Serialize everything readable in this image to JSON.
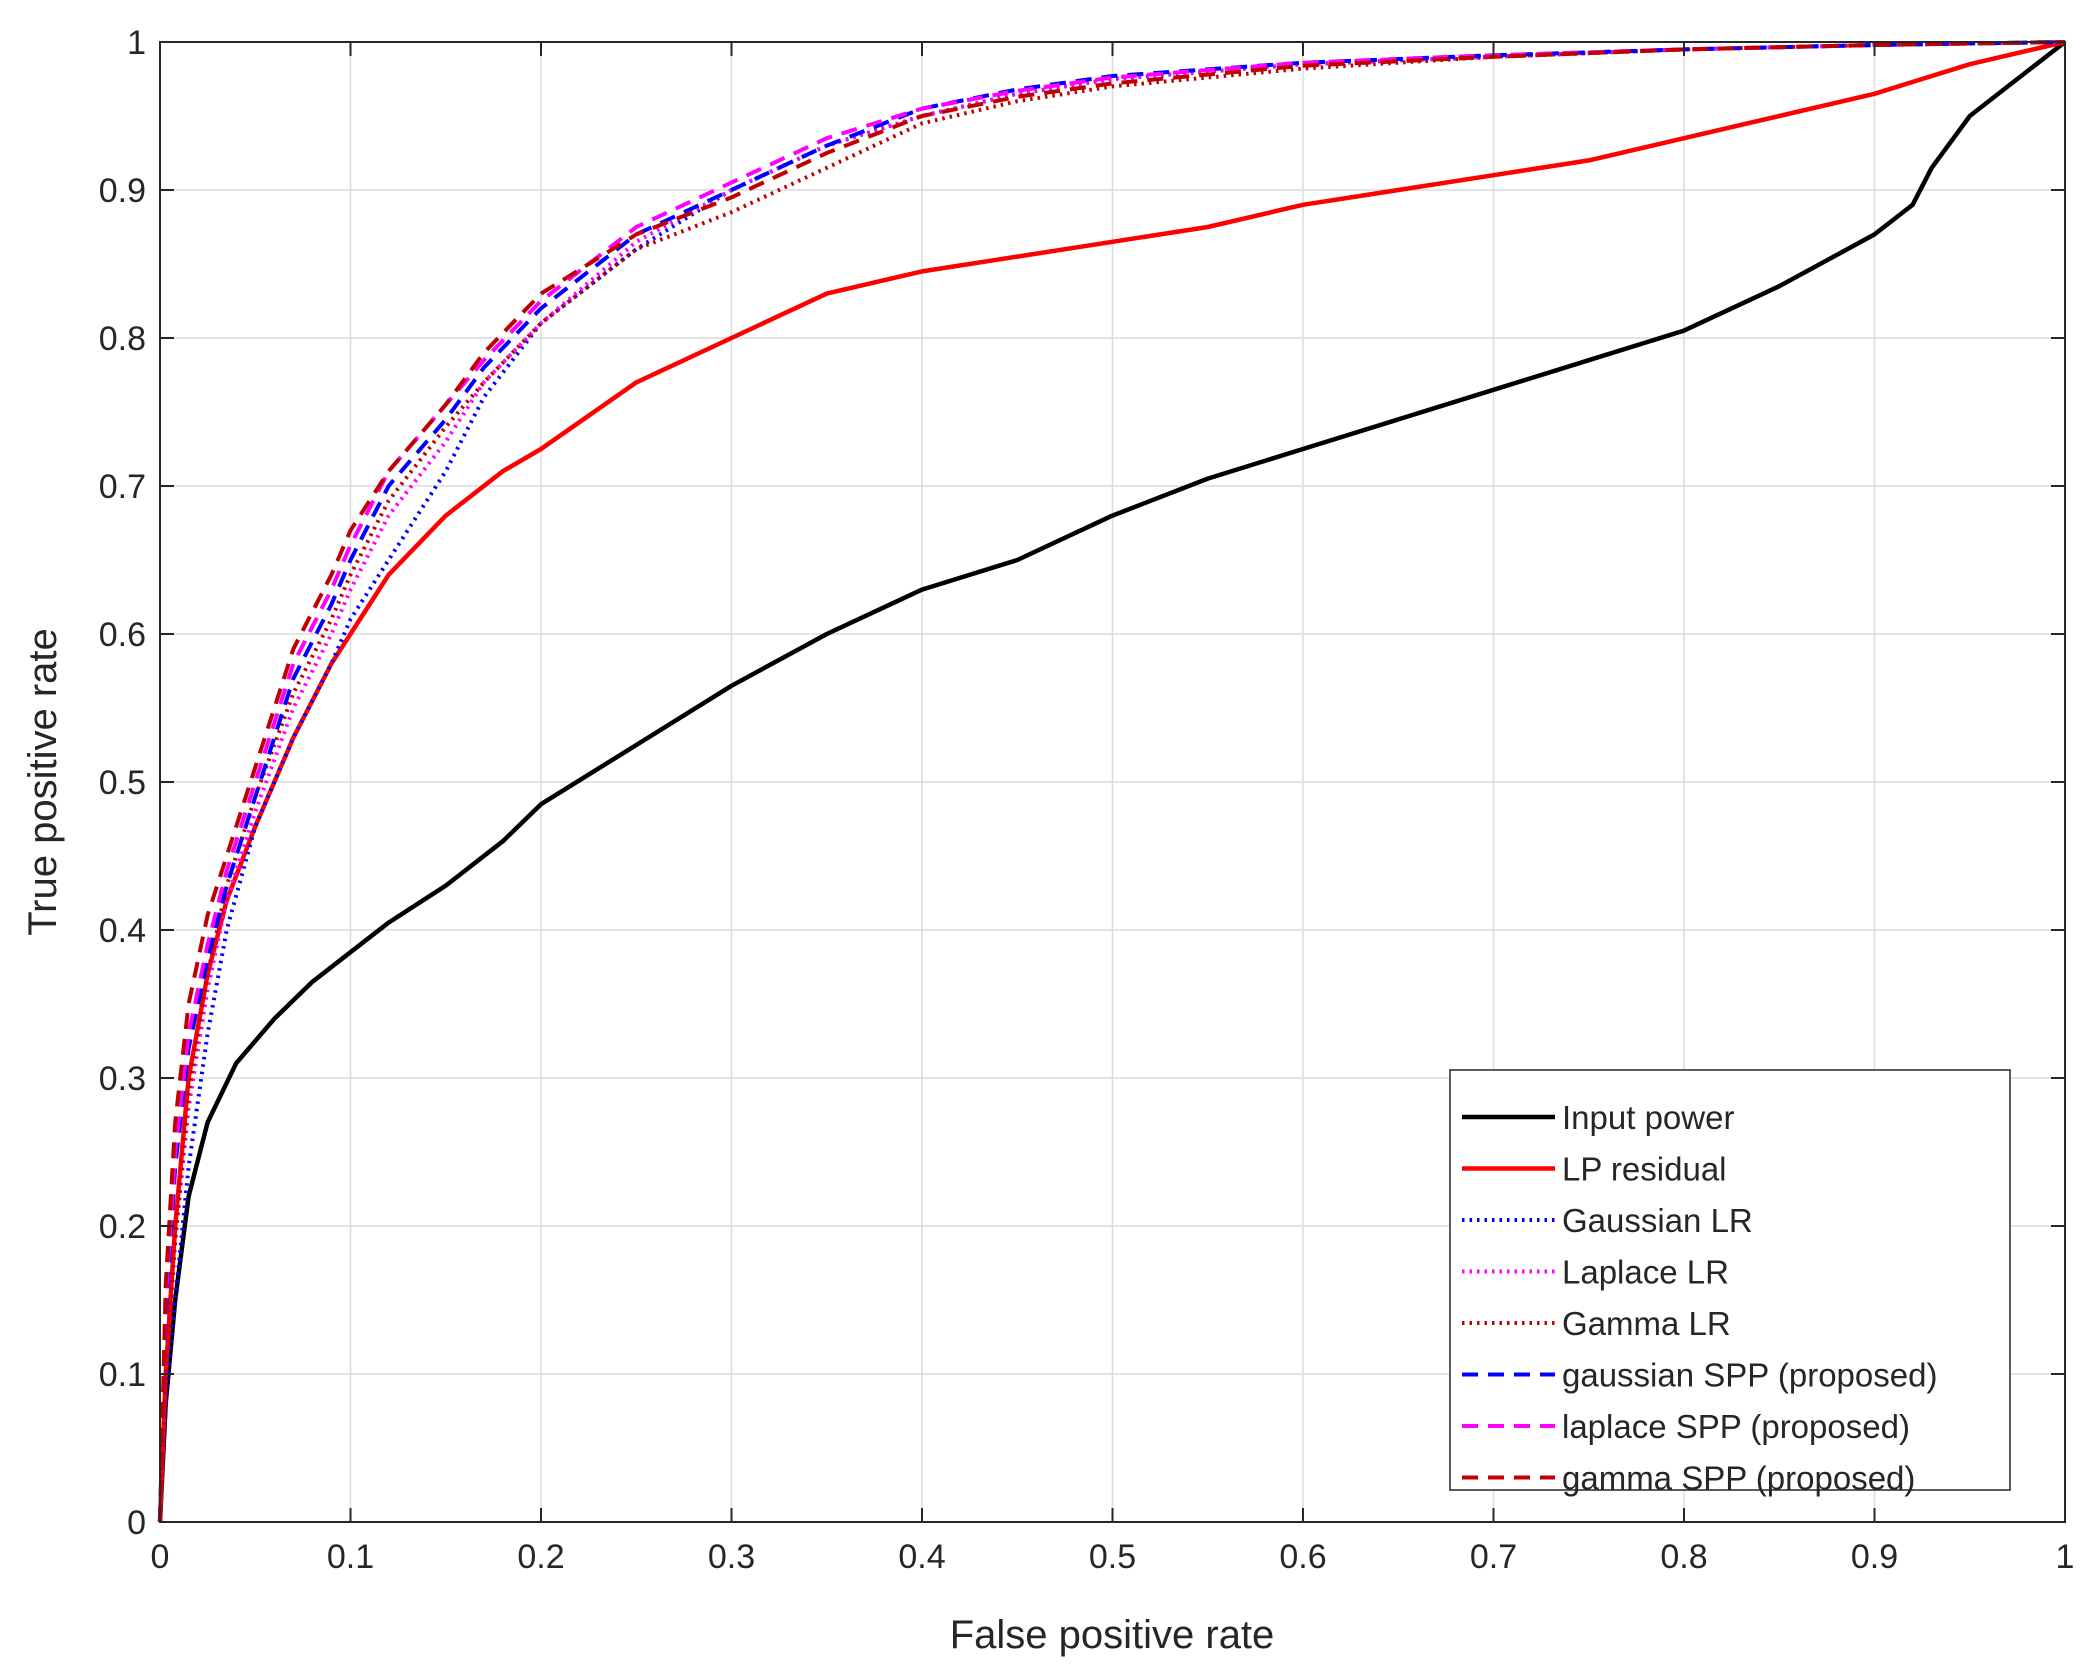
{
  "chart_data": {
    "type": "line",
    "title": "",
    "xlabel": "False positive rate",
    "ylabel": "True positive rate",
    "xlim": [
      0,
      1
    ],
    "ylim": [
      0,
      1
    ],
    "xticks": [
      0,
      0.1,
      0.2,
      0.3,
      0.4,
      0.5,
      0.6,
      0.7,
      0.8,
      0.9,
      1
    ],
    "xtick_labels": [
      "0",
      "0.1",
      "0.2",
      "0.3",
      "0.4",
      "0.5",
      "0.6",
      "0.7",
      "0.8",
      "0.9",
      "1"
    ],
    "yticks": [
      0,
      0.1,
      0.2,
      0.3,
      0.4,
      0.5,
      0.6,
      0.7,
      0.8,
      0.9,
      1
    ],
    "ytick_labels": [
      "0",
      "0.1",
      "0.2",
      "0.3",
      "0.4",
      "0.5",
      "0.6",
      "0.7",
      "0.8",
      "0.9",
      "1"
    ],
    "grid": true,
    "legend_position": "bottom-right",
    "series": [
      {
        "name": "Input power",
        "color": "#000000",
        "style": "solid",
        "x": [
          0,
          0.003,
          0.008,
          0.015,
          0.025,
          0.04,
          0.06,
          0.08,
          0.1,
          0.12,
          0.15,
          0.18,
          0.2,
          0.25,
          0.3,
          0.35,
          0.4,
          0.45,
          0.5,
          0.55,
          0.6,
          0.65,
          0.7,
          0.75,
          0.8,
          0.85,
          0.9,
          0.92,
          0.93,
          0.95,
          0.97,
          1
        ],
        "y": [
          0,
          0.08,
          0.15,
          0.22,
          0.27,
          0.31,
          0.34,
          0.365,
          0.385,
          0.405,
          0.43,
          0.46,
          0.485,
          0.525,
          0.565,
          0.6,
          0.63,
          0.65,
          0.68,
          0.705,
          0.725,
          0.745,
          0.765,
          0.785,
          0.805,
          0.835,
          0.87,
          0.89,
          0.915,
          0.95,
          0.97,
          1
        ]
      },
      {
        "name": "LP residual",
        "color": "#ff0000",
        "style": "solid",
        "x": [
          0,
          0.003,
          0.008,
          0.015,
          0.025,
          0.035,
          0.05,
          0.07,
          0.09,
          0.1,
          0.12,
          0.15,
          0.18,
          0.2,
          0.25,
          0.3,
          0.35,
          0.4,
          0.45,
          0.5,
          0.55,
          0.6,
          0.65,
          0.7,
          0.75,
          0.8,
          0.85,
          0.9,
          0.95,
          1
        ],
        "y": [
          0,
          0.1,
          0.2,
          0.3,
          0.37,
          0.42,
          0.47,
          0.53,
          0.58,
          0.6,
          0.64,
          0.68,
          0.71,
          0.725,
          0.77,
          0.8,
          0.83,
          0.845,
          0.855,
          0.865,
          0.875,
          0.89,
          0.9,
          0.91,
          0.92,
          0.935,
          0.95,
          0.965,
          0.985,
          1
        ]
      },
      {
        "name": "Gaussian LR",
        "color": "#0000ff",
        "style": "dotted",
        "x": [
          0,
          0.003,
          0.008,
          0.015,
          0.025,
          0.035,
          0.05,
          0.07,
          0.09,
          0.1,
          0.12,
          0.15,
          0.17,
          0.2,
          0.25,
          0.3,
          0.35,
          0.4,
          0.45,
          0.5,
          0.6,
          0.7,
          0.8,
          0.9,
          1
        ],
        "y": [
          0,
          0.08,
          0.15,
          0.24,
          0.33,
          0.4,
          0.47,
          0.53,
          0.58,
          0.61,
          0.65,
          0.71,
          0.76,
          0.81,
          0.86,
          0.9,
          0.93,
          0.95,
          0.965,
          0.975,
          0.985,
          0.99,
          0.995,
          0.998,
          1
        ]
      },
      {
        "name": "Laplace LR",
        "color": "#ff00ff",
        "style": "dotted",
        "x": [
          0,
          0.003,
          0.008,
          0.015,
          0.025,
          0.035,
          0.05,
          0.07,
          0.09,
          0.1,
          0.12,
          0.15,
          0.17,
          0.2,
          0.25,
          0.3,
          0.35,
          0.4,
          0.45,
          0.5,
          0.6,
          0.7,
          0.8,
          0.9,
          1
        ],
        "y": [
          0,
          0.1,
          0.19,
          0.28,
          0.36,
          0.42,
          0.48,
          0.55,
          0.6,
          0.63,
          0.68,
          0.73,
          0.77,
          0.81,
          0.865,
          0.9,
          0.93,
          0.95,
          0.965,
          0.975,
          0.985,
          0.99,
          0.995,
          0.998,
          1
        ]
      },
      {
        "name": "Gamma LR",
        "color": "#c00000",
        "style": "dotted",
        "x": [
          0,
          0.003,
          0.008,
          0.015,
          0.025,
          0.035,
          0.05,
          0.07,
          0.09,
          0.1,
          0.12,
          0.15,
          0.17,
          0.2,
          0.25,
          0.3,
          0.35,
          0.4,
          0.45,
          0.5,
          0.6,
          0.7,
          0.8,
          0.9,
          1
        ],
        "y": [
          0,
          0.1,
          0.19,
          0.29,
          0.37,
          0.43,
          0.49,
          0.56,
          0.61,
          0.64,
          0.69,
          0.74,
          0.77,
          0.81,
          0.86,
          0.885,
          0.915,
          0.945,
          0.96,
          0.97,
          0.982,
          0.99,
          0.995,
          0.998,
          1
        ]
      },
      {
        "name": "gaussian SPP (proposed)",
        "color": "#0000ff",
        "style": "dashed",
        "x": [
          0,
          0.003,
          0.008,
          0.015,
          0.025,
          0.035,
          0.05,
          0.07,
          0.09,
          0.1,
          0.12,
          0.15,
          0.17,
          0.2,
          0.25,
          0.3,
          0.35,
          0.4,
          0.45,
          0.5,
          0.6,
          0.7,
          0.8,
          0.9,
          1
        ],
        "y": [
          0,
          0.14,
          0.24,
          0.32,
          0.38,
          0.43,
          0.49,
          0.57,
          0.62,
          0.65,
          0.7,
          0.745,
          0.78,
          0.82,
          0.87,
          0.9,
          0.93,
          0.955,
          0.968,
          0.977,
          0.986,
          0.991,
          0.995,
          0.998,
          1
        ]
      },
      {
        "name": "laplace SPP (proposed)",
        "color": "#ff00ff",
        "style": "dashed",
        "x": [
          0,
          0.003,
          0.008,
          0.015,
          0.025,
          0.035,
          0.05,
          0.07,
          0.09,
          0.1,
          0.12,
          0.15,
          0.17,
          0.2,
          0.25,
          0.3,
          0.35,
          0.4,
          0.45,
          0.5,
          0.6,
          0.7,
          0.8,
          0.9,
          1
        ],
        "y": [
          0,
          0.15,
          0.25,
          0.33,
          0.39,
          0.44,
          0.5,
          0.58,
          0.63,
          0.66,
          0.71,
          0.755,
          0.785,
          0.825,
          0.875,
          0.905,
          0.935,
          0.955,
          0.967,
          0.976,
          0.986,
          0.991,
          0.995,
          0.998,
          1
        ]
      },
      {
        "name": "gamma SPP (proposed)",
        "color": "#c00000",
        "style": "dashed",
        "x": [
          0,
          0.003,
          0.008,
          0.015,
          0.025,
          0.035,
          0.05,
          0.07,
          0.09,
          0.1,
          0.12,
          0.15,
          0.17,
          0.2,
          0.25,
          0.3,
          0.35,
          0.4,
          0.45,
          0.5,
          0.6,
          0.7,
          0.8,
          0.9,
          1
        ],
        "y": [
          0,
          0.16,
          0.27,
          0.35,
          0.41,
          0.45,
          0.51,
          0.59,
          0.64,
          0.67,
          0.71,
          0.755,
          0.79,
          0.83,
          0.87,
          0.895,
          0.925,
          0.95,
          0.963,
          0.972,
          0.984,
          0.99,
          0.995,
          0.998,
          1
        ]
      }
    ]
  }
}
